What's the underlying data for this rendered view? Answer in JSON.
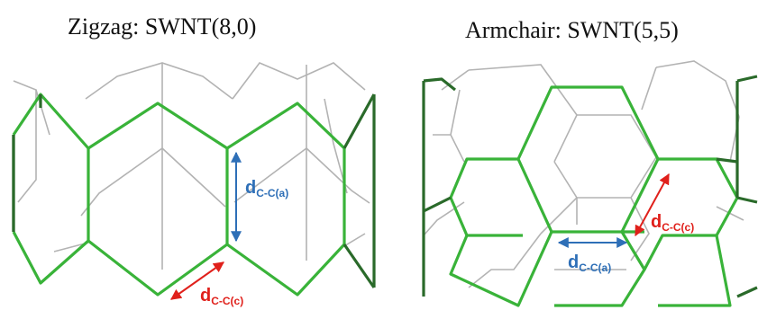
{
  "figure": {
    "left": {
      "title": "Zigzag: SWNT(8,0)",
      "bond_axial_label_main": "d",
      "bond_axial_label_sub": "C-C(a)",
      "bond_circ_label_main": "d",
      "bond_circ_label_sub": "C-C(c)"
    },
    "right": {
      "title": "Armchair: SWNT(5,5)",
      "bond_axial_label_main": "d",
      "bond_axial_label_sub": "C-C(a)",
      "bond_circ_label_main": "d",
      "bond_circ_label_sub": "C-C(c)"
    }
  },
  "colors": {
    "front_bond": "#39b339",
    "edge_bond": "#2a6a2a",
    "back_bond": "#b3b3b3",
    "axial_arrow": "#2e6fb7",
    "circ_arrow": "#e0201b"
  }
}
